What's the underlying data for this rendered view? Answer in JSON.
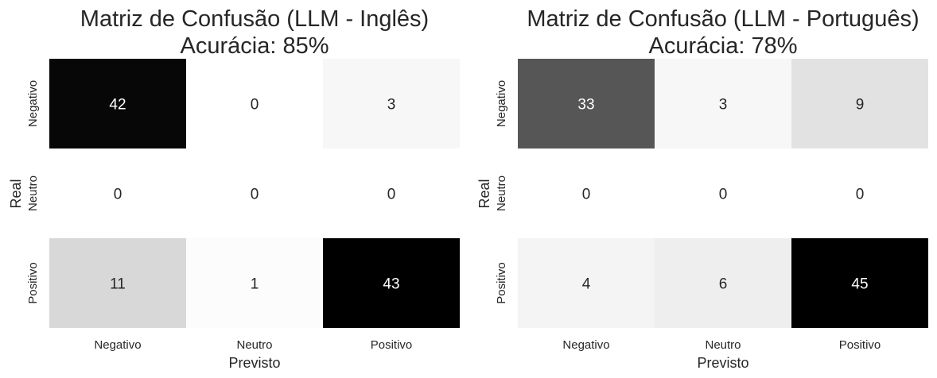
{
  "chart_data": [
    {
      "type": "heatmap",
      "title_line1": "Matriz de Confusão (LLM - Inglês)",
      "title_line2": "Acurácia: 85%",
      "xlabel": "Previsto",
      "ylabel": "Real",
      "x_categories": [
        "Negativo",
        "Neutro",
        "Positivo"
      ],
      "y_categories": [
        "Negativo",
        "Neutro",
        "Positivo"
      ],
      "values": [
        [
          42,
          0,
          3
        ],
        [
          0,
          0,
          0
        ],
        [
          11,
          1,
          43
        ]
      ],
      "color_scale": "Greys",
      "vmax": 43,
      "colorbar": false,
      "grid": false
    },
    {
      "type": "heatmap",
      "title_line1": "Matriz de Confusão (LLM - Português)",
      "title_line2": "Acurácia: 78%",
      "xlabel": "Previsto",
      "ylabel": "Real",
      "x_categories": [
        "Negativo",
        "Neutro",
        "Positivo"
      ],
      "y_categories": [
        "Negativo",
        "Neutro",
        "Positivo"
      ],
      "values": [
        [
          33,
          3,
          9
        ],
        [
          0,
          0,
          0
        ],
        [
          4,
          6,
          45
        ]
      ],
      "color_scale": "Greys",
      "vmax": 45,
      "colorbar": false,
      "grid": false
    }
  ]
}
